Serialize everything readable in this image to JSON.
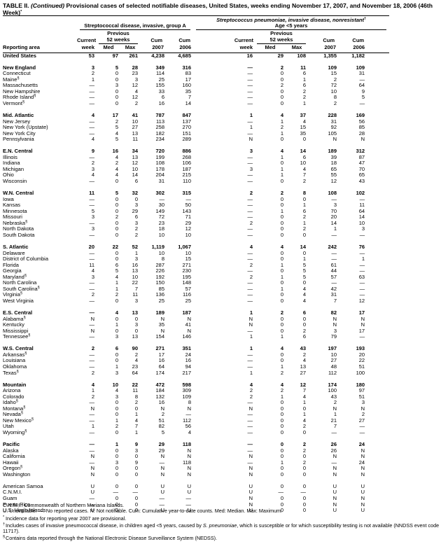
{
  "title": [
    "TABLE II. ",
    "(Continued)",
    " Provisional cases of selected notifiable diseases, United States, weeks ending November 17, 2007, and November 18, 2006 (46th Week)",
    "*"
  ],
  "groups": [
    {
      "title": "Streptococcal disease, invasive, group A"
    },
    {
      "title": "Streptococcus pneumoniae, invasive disease, nonresistant",
      "note": "†",
      "subtitle": "Age <5 years"
    }
  ],
  "header": {
    "reporting_area": "Reporting area",
    "current": "Current",
    "week": "week",
    "previous": "Previous",
    "weeks52": "52 weeks",
    "med": "Med",
    "max": "Max",
    "cum": "Cum",
    "y2007": "2007",
    "y2006": "2006"
  },
  "us": {
    "area": "United States",
    "values": [
      "53",
      "97",
      "261",
      "4,238",
      "4,685",
      "16",
      "29",
      "108",
      "1,355",
      "1,182"
    ]
  },
  "regions": [
    {
      "area": "New England",
      "values": [
        "3",
        "5",
        "28",
        "349",
        "316",
        "—",
        "2",
        "11",
        "109",
        "109"
      ],
      "states": [
        {
          "area": "Connecticut",
          "values": [
            "2",
            "0",
            "23",
            "114",
            "83",
            "—",
            "0",
            "6",
            "15",
            "31"
          ]
        },
        {
          "area": "Maine",
          "note": "§",
          "values": [
            "1",
            "0",
            "3",
            "25",
            "17",
            "—",
            "0",
            "1",
            "2",
            "—"
          ]
        },
        {
          "area": "Massachusetts",
          "values": [
            "—",
            "3",
            "12",
            "155",
            "160",
            "—",
            "2",
            "6",
            "72",
            "64"
          ]
        },
        {
          "area": "New Hampshire",
          "values": [
            "—",
            "0",
            "4",
            "33",
            "35",
            "—",
            "0",
            "2",
            "10",
            "9"
          ]
        },
        {
          "area": "Rhode Island",
          "note": "§",
          "values": [
            "—",
            "0",
            "12",
            "6",
            "7",
            "—",
            "0",
            "2",
            "8",
            "5"
          ]
        },
        {
          "area": "Vermont",
          "note": "§",
          "values": [
            "—",
            "0",
            "2",
            "16",
            "14",
            "—",
            "0",
            "1",
            "2",
            "—"
          ]
        }
      ]
    },
    {
      "area": "Mid. Atlantic",
      "values": [
        "4",
        "17",
        "41",
        "787",
        "847",
        "1",
        "4",
        "37",
        "228",
        "169"
      ],
      "states": [
        {
          "area": "New Jersey",
          "values": [
            "—",
            "2",
            "10",
            "113",
            "137",
            "—",
            "1",
            "4",
            "31",
            "56"
          ]
        },
        {
          "area": "New York (Upstate)",
          "values": [
            "—",
            "5",
            "27",
            "258",
            "270",
            "1",
            "2",
            "15",
            "92",
            "85"
          ]
        },
        {
          "area": "New York City",
          "values": [
            "—",
            "4",
            "13",
            "182",
            "151",
            "—",
            "1",
            "35",
            "105",
            "28"
          ]
        },
        {
          "area": "Pennsylvania",
          "values": [
            "4",
            "5",
            "11",
            "234",
            "289",
            "N",
            "0",
            "0",
            "N",
            "N"
          ]
        }
      ]
    },
    {
      "area": "E.N. Central",
      "values": [
        "9",
        "16",
        "34",
        "720",
        "886",
        "3",
        "4",
        "14",
        "189",
        "312"
      ],
      "states": [
        {
          "area": "Illinois",
          "values": [
            "—",
            "4",
            "13",
            "199",
            "268",
            "—",
            "1",
            "6",
            "39",
            "87"
          ]
        },
        {
          "area": "Indiana",
          "values": [
            "2",
            "2",
            "12",
            "108",
            "106",
            "—",
            "0",
            "10",
            "18",
            "47"
          ]
        },
        {
          "area": "Michigan",
          "values": [
            "3",
            "4",
            "10",
            "178",
            "187",
            "3",
            "1",
            "4",
            "65",
            "70"
          ]
        },
        {
          "area": "Ohio",
          "values": [
            "4",
            "4",
            "14",
            "204",
            "215",
            "—",
            "1",
            "7",
            "55",
            "65"
          ]
        },
        {
          "area": "Wisconsin",
          "values": [
            "—",
            "0",
            "6",
            "31",
            "110",
            "—",
            "0",
            "2",
            "12",
            "43"
          ]
        }
      ]
    },
    {
      "area": "W.N. Central",
      "values": [
        "11",
        "5",
        "32",
        "302",
        "315",
        "2",
        "2",
        "8",
        "108",
        "102"
      ],
      "states": [
        {
          "area": "Iowa",
          "values": [
            "—",
            "0",
            "0",
            "—",
            "—",
            "—",
            "0",
            "0",
            "—",
            "—"
          ]
        },
        {
          "area": "Kansas",
          "values": [
            "—",
            "0",
            "3",
            "30",
            "50",
            "—",
            "0",
            "1",
            "3",
            "11"
          ]
        },
        {
          "area": "Minnesota",
          "values": [
            "5",
            "0",
            "29",
            "149",
            "143",
            "—",
            "1",
            "6",
            "70",
            "64"
          ]
        },
        {
          "area": "Missouri",
          "values": [
            "3",
            "2",
            "6",
            "72",
            "71",
            "—",
            "0",
            "2",
            "20",
            "14"
          ]
        },
        {
          "area": "Nebraska",
          "note": "§",
          "values": [
            "—",
            "0",
            "3",
            "23",
            "29",
            "2",
            "0",
            "1",
            "14",
            "10"
          ]
        },
        {
          "area": "North Dakota",
          "values": [
            "3",
            "0",
            "2",
            "18",
            "12",
            "—",
            "0",
            "2",
            "1",
            "3"
          ]
        },
        {
          "area": "South Dakota",
          "values": [
            "—",
            "0",
            "2",
            "10",
            "10",
            "—",
            "0",
            "0",
            "—",
            "—"
          ]
        }
      ]
    },
    {
      "area": "S. Atlantic",
      "values": [
        "20",
        "22",
        "52",
        "1,119",
        "1,067",
        "4",
        "4",
        "14",
        "242",
        "76"
      ],
      "states": [
        {
          "area": "Delaware",
          "values": [
            "—",
            "0",
            "1",
            "10",
            "10",
            "—",
            "0",
            "0",
            "—",
            "—"
          ]
        },
        {
          "area": "District of Columbia",
          "values": [
            "—",
            "0",
            "3",
            "8",
            "15",
            "—",
            "0",
            "1",
            "—",
            "1"
          ]
        },
        {
          "area": "Florida",
          "values": [
            "11",
            "6",
            "16",
            "287",
            "271",
            "2",
            "1",
            "5",
            "61",
            "—"
          ]
        },
        {
          "area": "Georgia",
          "values": [
            "4",
            "5",
            "13",
            "226",
            "230",
            "—",
            "0",
            "5",
            "44",
            "—"
          ]
        },
        {
          "area": "Maryland",
          "note": "§",
          "values": [
            "3",
            "4",
            "10",
            "192",
            "195",
            "2",
            "1",
            "5",
            "57",
            "63"
          ]
        },
        {
          "area": "North Carolina",
          "values": [
            "—",
            "1",
            "22",
            "150",
            "148",
            "—",
            "0",
            "0",
            "—",
            "—"
          ]
        },
        {
          "area": "South Carolina",
          "note": "§",
          "values": [
            "—",
            "1",
            "7",
            "85",
            "57",
            "—",
            "1",
            "4",
            "42",
            "—"
          ]
        },
        {
          "area": "Virginia",
          "note": "§",
          "values": [
            "2",
            "2",
            "11",
            "136",
            "116",
            "—",
            "0",
            "4",
            "31",
            "—"
          ]
        },
        {
          "area": "West Virginia",
          "values": [
            "—",
            "0",
            "3",
            "25",
            "25",
            "—",
            "0",
            "4",
            "7",
            "12"
          ]
        }
      ]
    },
    {
      "area": "E.S. Central",
      "values": [
        "—",
        "4",
        "13",
        "189",
        "187",
        "1",
        "2",
        "6",
        "82",
        "17"
      ],
      "states": [
        {
          "area": "Alabama",
          "note": "§",
          "values": [
            "N",
            "0",
            "0",
            "N",
            "N",
            "N",
            "0",
            "0",
            "N",
            "N"
          ]
        },
        {
          "area": "Kentucky",
          "values": [
            "—",
            "1",
            "3",
            "35",
            "41",
            "N",
            "0",
            "0",
            "N",
            "N"
          ]
        },
        {
          "area": "Mississippi",
          "values": [
            "N",
            "0",
            "0",
            "N",
            "N",
            "—",
            "0",
            "2",
            "3",
            "17"
          ]
        },
        {
          "area": "Tennessee",
          "note": "§",
          "values": [
            "—",
            "3",
            "13",
            "154",
            "146",
            "1",
            "1",
            "6",
            "79",
            "—"
          ]
        }
      ]
    },
    {
      "area": "W.S. Central",
      "values": [
        "2",
        "6",
        "90",
        "271",
        "351",
        "1",
        "4",
        "43",
        "197",
        "193"
      ],
      "states": [
        {
          "area": "Arkansas",
          "note": "§",
          "values": [
            "—",
            "0",
            "2",
            "17",
            "24",
            "—",
            "0",
            "2",
            "10",
            "20"
          ]
        },
        {
          "area": "Louisiana",
          "values": [
            "—",
            "0",
            "4",
            "16",
            "16",
            "—",
            "0",
            "4",
            "27",
            "22"
          ]
        },
        {
          "area": "Oklahoma",
          "values": [
            "—",
            "1",
            "23",
            "64",
            "94",
            "—",
            "1",
            "13",
            "48",
            "51"
          ]
        },
        {
          "area": "Texas",
          "note": "§",
          "values": [
            "2",
            "3",
            "64",
            "174",
            "217",
            "1",
            "2",
            "27",
            "112",
            "100"
          ]
        }
      ]
    },
    {
      "area": "Mountain",
      "values": [
        "4",
        "10",
        "22",
        "472",
        "598",
        "4",
        "4",
        "12",
        "174",
        "180"
      ],
      "states": [
        {
          "area": "Arizona",
          "values": [
            "1",
            "4",
            "11",
            "184",
            "309",
            "2",
            "2",
            "7",
            "100",
            "97"
          ]
        },
        {
          "area": "Colorado",
          "values": [
            "2",
            "3",
            "8",
            "132",
            "109",
            "2",
            "1",
            "4",
            "43",
            "51"
          ]
        },
        {
          "area": "Idaho",
          "note": "§",
          "values": [
            "—",
            "0",
            "2",
            "16",
            "8",
            "—",
            "0",
            "1",
            "2",
            "3"
          ]
        },
        {
          "area": "Montana",
          "note": "§",
          "values": [
            "N",
            "0",
            "0",
            "N",
            "N",
            "N",
            "0",
            "0",
            "N",
            "N"
          ]
        },
        {
          "area": "Nevada",
          "note": "§",
          "values": [
            "—",
            "0",
            "1",
            "2",
            "—",
            "—",
            "0",
            "1",
            "1",
            "2"
          ]
        },
        {
          "area": "New Mexico",
          "note": "§",
          "values": [
            "—",
            "1",
            "4",
            "51",
            "112",
            "—",
            "0",
            "4",
            "21",
            "27"
          ]
        },
        {
          "area": "Utah",
          "values": [
            "1",
            "2",
            "7",
            "82",
            "56",
            "—",
            "0",
            "2",
            "7",
            "—"
          ]
        },
        {
          "area": "Wyoming",
          "note": "§",
          "values": [
            "—",
            "0",
            "1",
            "5",
            "4",
            "—",
            "0",
            "0",
            "—",
            "—"
          ]
        }
      ]
    },
    {
      "area": "Pacific",
      "values": [
        "—",
        "1",
        "9",
        "29",
        "118",
        "—",
        "0",
        "2",
        "26",
        "24"
      ],
      "states": [
        {
          "area": "Alaska",
          "values": [
            "—",
            "0",
            "3",
            "29",
            "N",
            "—",
            "0",
            "2",
            "26",
            "N"
          ]
        },
        {
          "area": "California",
          "values": [
            "N",
            "0",
            "0",
            "N",
            "N",
            "N",
            "0",
            "0",
            "N",
            "N"
          ]
        },
        {
          "area": "Hawaii",
          "values": [
            "—",
            "3",
            "9",
            "—",
            "118",
            "—",
            "1",
            "2",
            "—",
            "24"
          ]
        },
        {
          "area": "Oregon",
          "note": "§",
          "values": [
            "N",
            "0",
            "0",
            "N",
            "N",
            "N",
            "0",
            "0",
            "N",
            "N"
          ]
        },
        {
          "area": "Washington",
          "values": [
            "N",
            "0",
            "0",
            "N",
            "N",
            "N",
            "0",
            "0",
            "N",
            "N"
          ]
        }
      ]
    }
  ],
  "territories": [
    {
      "area": "American Samoa",
      "values": [
        "U",
        "0",
        "0",
        "U",
        "U",
        "U",
        "0",
        "0",
        "U",
        "U"
      ]
    },
    {
      "area": "C.N.M.I.",
      "values": [
        "U",
        "—",
        "—",
        "U",
        "U",
        "U",
        "—",
        "—",
        "U",
        "U"
      ]
    },
    {
      "area": "Guam",
      "values": [
        "—",
        "0",
        "0",
        "—",
        "—",
        "N",
        "0",
        "0",
        "N",
        "N"
      ]
    },
    {
      "area": "Puerto Rico",
      "values": [
        "—",
        "0",
        "0",
        "—",
        "—",
        "N",
        "0",
        "0",
        "N",
        "N"
      ]
    },
    {
      "area": "U.S. Virgin Islands",
      "values": [
        "U",
        "0",
        "0",
        "U",
        "U",
        "U",
        "0",
        "0",
        "U",
        "U"
      ]
    }
  ],
  "footnotes": [
    {
      "text": [
        "C.N.M.I.: Commonwealth of Northern Mariana Islands."
      ]
    },
    {
      "text": [
        "U: Unavailable.   —: No reported cases.   N: Not notifiable.   Cum: Cumulative year-to-date counts.   Med: Median.   Max: Maximum."
      ]
    },
    {
      "mark": "*",
      "text": [
        "Incidence data for reporting year 2007 are provisional."
      ]
    },
    {
      "mark": "†",
      "text": [
        "Includes cases of invasive pneumococcal disease, in children aged <5 years, caused by ",
        "S. pneumoniae",
        ", which is susceptible or for which susceptibility testing is not available (NNDSS event code 11717)."
      ]
    },
    {
      "mark": "§",
      "text": [
        "Contains data reported through the National Electronic Disease Surveillance System (NEDSS)."
      ]
    }
  ]
}
